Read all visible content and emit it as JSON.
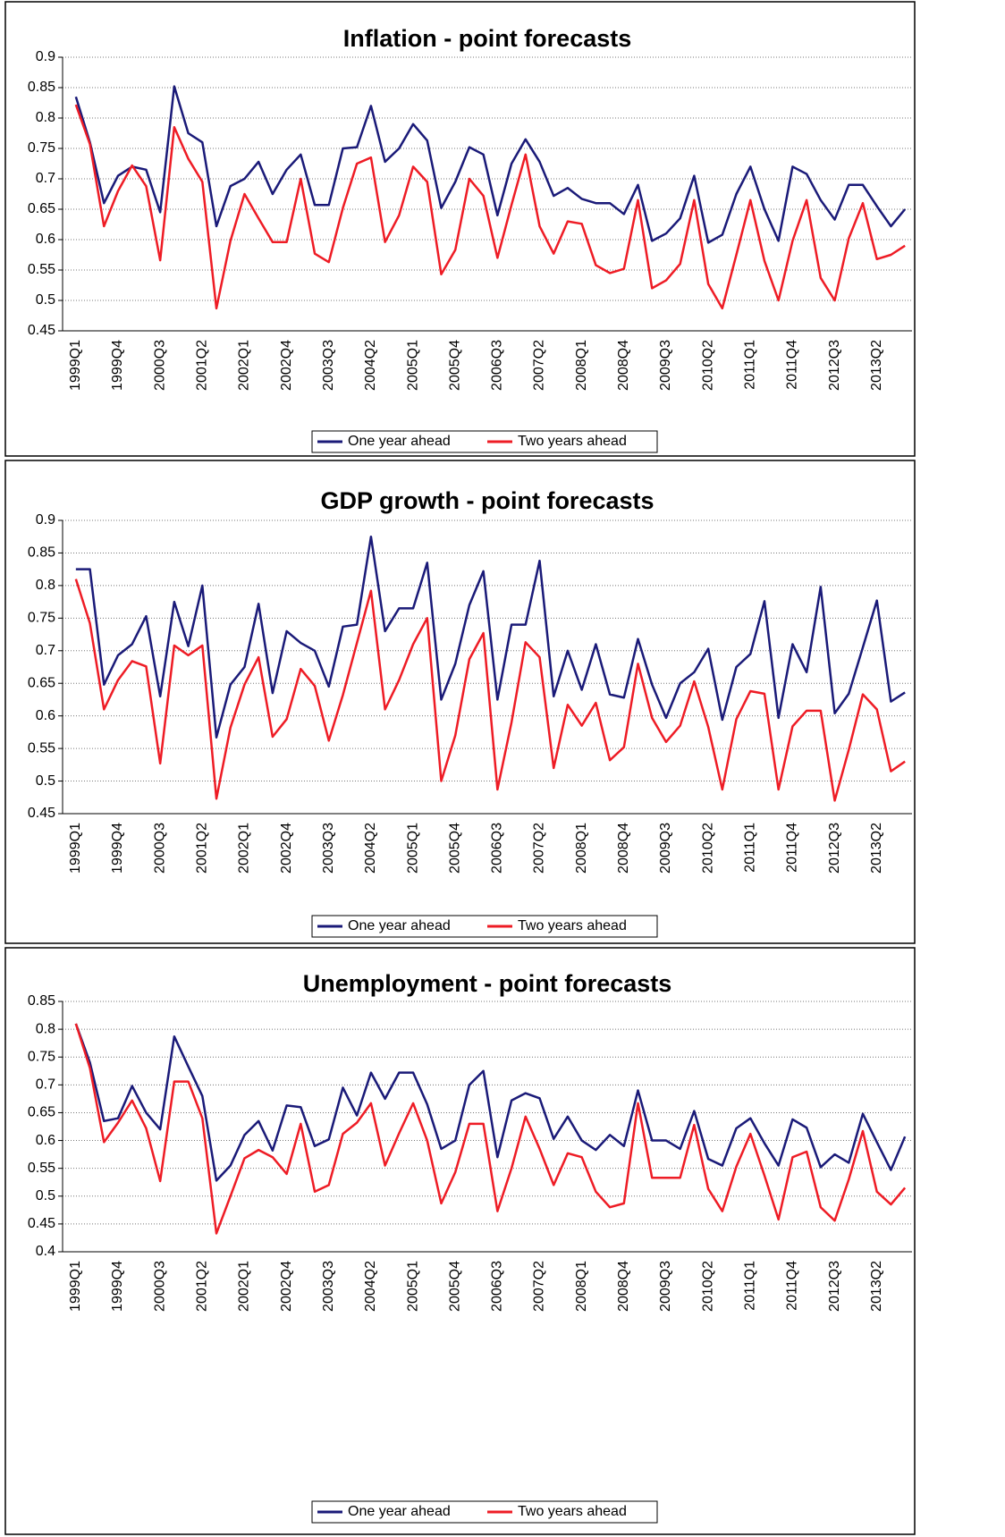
{
  "chart_data": [
    {
      "type": "line",
      "title": "Inflation - point forecasts",
      "categories": [
        "1999Q1",
        null,
        null,
        "1999Q4",
        null,
        null,
        "2000Q3",
        null,
        null,
        "2001Q2",
        null,
        null,
        "2002Q1",
        null,
        null,
        "2002Q4",
        null,
        null,
        "2003Q3",
        null,
        null,
        "2004Q2",
        null,
        null,
        "2005Q1",
        null,
        null,
        "2005Q4",
        null,
        null,
        "2006Q3",
        null,
        null,
        "2007Q2",
        null,
        null,
        "2008Q1",
        null,
        null,
        "2008Q4",
        null,
        null,
        "2009Q3",
        null,
        null,
        "2010Q2",
        null,
        null,
        "2011Q1",
        null,
        null,
        "2011Q4",
        null,
        null,
        "2012Q3",
        null,
        null,
        "2013Q2",
        null,
        null
      ],
      "series": [
        {
          "name": "One year ahead",
          "color": "#1a1a78",
          "values": [
            0.835,
            0.76,
            0.66,
            0.705,
            0.72,
            0.715,
            0.645,
            0.852,
            0.775,
            0.76,
            0.622,
            0.688,
            0.7,
            0.728,
            0.675,
            0.715,
            0.74,
            0.657,
            0.657,
            0.75,
            0.752,
            0.82,
            0.728,
            0.75,
            0.79,
            0.763,
            0.652,
            0.695,
            0.752,
            0.74,
            0.64,
            0.725,
            0.765,
            0.728,
            0.672,
            0.685,
            0.667,
            0.66,
            0.66,
            0.642,
            0.69,
            0.598,
            0.61,
            0.635,
            0.705,
            0.595,
            0.608,
            0.675,
            0.72,
            0.65,
            0.598,
            0.72,
            0.708,
            0.665,
            0.633,
            0.69,
            0.69,
            0.655,
            0.622,
            0.65
          ]
        },
        {
          "name": "Two years ahead",
          "color": "#ee1c25",
          "values": [
            0.822,
            0.757,
            0.622,
            0.68,
            0.722,
            0.688,
            0.566,
            0.785,
            0.733,
            0.695,
            0.487,
            0.598,
            0.675,
            0.635,
            0.596,
            0.596,
            0.7,
            0.577,
            0.563,
            0.652,
            0.725,
            0.735,
            0.596,
            0.64,
            0.72,
            0.695,
            0.543,
            0.583,
            0.7,
            0.672,
            0.57,
            0.657,
            0.74,
            0.622,
            0.577,
            0.63,
            0.626,
            0.558,
            0.545,
            0.552,
            0.665,
            0.52,
            0.533,
            0.56,
            0.665,
            0.527,
            0.487,
            0.575,
            0.665,
            0.565,
            0.5,
            0.598,
            0.665,
            0.537,
            0.5,
            0.602,
            0.66,
            0.568,
            0.575,
            0.59
          ]
        }
      ],
      "ylim": [
        0.45,
        0.9
      ],
      "yticks": [
        0.45,
        0.5,
        0.55,
        0.6,
        0.65,
        0.7,
        0.75,
        0.8,
        0.85,
        0.9
      ],
      "grid": true,
      "legend": "bottom"
    },
    {
      "type": "line",
      "title": "GDP growth - point forecasts",
      "categories": [
        "1999Q1",
        null,
        null,
        "1999Q4",
        null,
        null,
        "2000Q3",
        null,
        null,
        "2001Q2",
        null,
        null,
        "2002Q1",
        null,
        null,
        "2002Q4",
        null,
        null,
        "2003Q3",
        null,
        null,
        "2004Q2",
        null,
        null,
        "2005Q1",
        null,
        null,
        "2005Q4",
        null,
        null,
        "2006Q3",
        null,
        null,
        "2007Q2",
        null,
        null,
        "2008Q1",
        null,
        null,
        "2008Q4",
        null,
        null,
        "2009Q3",
        null,
        null,
        "2010Q2",
        null,
        null,
        "2011Q1",
        null,
        null,
        "2011Q4",
        null,
        null,
        "2012Q3",
        null,
        null,
        "2013Q2",
        null,
        null
      ],
      "series": [
        {
          "name": "One year ahead",
          "color": "#1a1a78",
          "values": [
            0.825,
            0.825,
            0.648,
            0.693,
            0.71,
            0.753,
            0.63,
            0.775,
            0.707,
            0.8,
            0.567,
            0.648,
            0.675,
            0.772,
            0.635,
            0.73,
            0.712,
            0.7,
            0.645,
            0.737,
            0.74,
            0.875,
            0.73,
            0.765,
            0.765,
            0.835,
            0.625,
            0.68,
            0.77,
            0.822,
            0.625,
            0.74,
            0.74,
            0.838,
            0.63,
            0.7,
            0.64,
            0.71,
            0.633,
            0.628,
            0.718,
            0.648,
            0.597,
            0.65,
            0.667,
            0.703,
            0.594,
            0.675,
            0.695,
            0.776,
            0.597,
            0.71,
            0.667,
            0.798,
            0.604,
            0.634,
            0.705,
            0.777,
            0.622,
            0.636
          ]
        },
        {
          "name": "Two years ahead",
          "color": "#ee1c25",
          "values": [
            0.81,
            0.742,
            0.61,
            0.655,
            0.684,
            0.676,
            0.527,
            0.708,
            0.693,
            0.708,
            0.473,
            0.582,
            0.648,
            0.69,
            0.568,
            0.595,
            0.672,
            0.646,
            0.562,
            0.632,
            0.712,
            0.792,
            0.61,
            0.655,
            0.71,
            0.75,
            0.5,
            0.57,
            0.687,
            0.727,
            0.487,
            0.59,
            0.713,
            0.69,
            0.52,
            0.617,
            0.585,
            0.62,
            0.532,
            0.552,
            0.68,
            0.597,
            0.56,
            0.585,
            0.653,
            0.583,
            0.487,
            0.595,
            0.638,
            0.634,
            0.487,
            0.584,
            0.608,
            0.608,
            0.47,
            0.548,
            0.633,
            0.61,
            0.515,
            0.53
          ]
        }
      ],
      "ylim": [
        0.45,
        0.9
      ],
      "yticks": [
        0.45,
        0.5,
        0.55,
        0.6,
        0.65,
        0.7,
        0.75,
        0.8,
        0.85,
        0.9
      ],
      "grid": true,
      "legend": "bottom"
    },
    {
      "type": "line",
      "title": "Unemployment - point forecasts",
      "categories": [
        "1999Q1",
        null,
        null,
        "1999Q4",
        null,
        null,
        "2000Q3",
        null,
        null,
        "2001Q2",
        null,
        null,
        "2002Q1",
        null,
        null,
        "2002Q4",
        null,
        null,
        "2003Q3",
        null,
        null,
        "2004Q2",
        null,
        null,
        "2005Q1",
        null,
        null,
        "2005Q4",
        null,
        null,
        "2006Q3",
        null,
        null,
        "2007Q2",
        null,
        null,
        "2008Q1",
        null,
        null,
        "2008Q4",
        null,
        null,
        "2009Q3",
        null,
        null,
        "2010Q2",
        null,
        null,
        "2011Q1",
        null,
        null,
        "2011Q4",
        null,
        null,
        "2012Q3",
        null,
        null,
        "2013Q2",
        null,
        null
      ],
      "series": [
        {
          "name": "One year ahead",
          "color": "#1a1a78",
          "values": [
            0.81,
            0.74,
            0.635,
            0.64,
            0.698,
            0.65,
            0.62,
            0.787,
            0.733,
            0.68,
            0.528,
            0.555,
            0.61,
            0.635,
            0.582,
            0.663,
            0.66,
            0.59,
            0.602,
            0.695,
            0.645,
            0.722,
            0.675,
            0.722,
            0.722,
            0.665,
            0.585,
            0.6,
            0.7,
            0.725,
            0.57,
            0.672,
            0.685,
            0.676,
            0.603,
            0.643,
            0.6,
            0.583,
            0.61,
            0.59,
            0.69,
            0.6,
            0.6,
            0.585,
            0.653,
            0.567,
            0.555,
            0.622,
            0.64,
            0.595,
            0.555,
            0.638,
            0.623,
            0.552,
            0.575,
            0.56,
            0.648,
            0.597,
            0.547,
            0.607
          ]
        },
        {
          "name": "Two years ahead",
          "color": "#ee1c25",
          "values": [
            0.81,
            0.73,
            0.597,
            0.632,
            0.672,
            0.622,
            0.527,
            0.706,
            0.706,
            0.64,
            0.433,
            0.5,
            0.568,
            0.583,
            0.57,
            0.54,
            0.63,
            0.508,
            0.52,
            0.612,
            0.632,
            0.667,
            0.555,
            0.613,
            0.667,
            0.6,
            0.487,
            0.543,
            0.63,
            0.63,
            0.473,
            0.55,
            0.643,
            0.585,
            0.52,
            0.577,
            0.57,
            0.508,
            0.48,
            0.487,
            0.667,
            0.533,
            0.533,
            0.533,
            0.628,
            0.513,
            0.473,
            0.553,
            0.612,
            0.537,
            0.458,
            0.57,
            0.58,
            0.48,
            0.456,
            0.53,
            0.617,
            0.508,
            0.485,
            0.515
          ]
        }
      ],
      "ylim": [
        0.4,
        0.85
      ],
      "yticks": [
        0.4,
        0.45,
        0.5,
        0.55,
        0.6,
        0.65,
        0.7,
        0.75,
        0.8,
        0.85
      ],
      "grid": true,
      "legend": "bottom"
    }
  ]
}
